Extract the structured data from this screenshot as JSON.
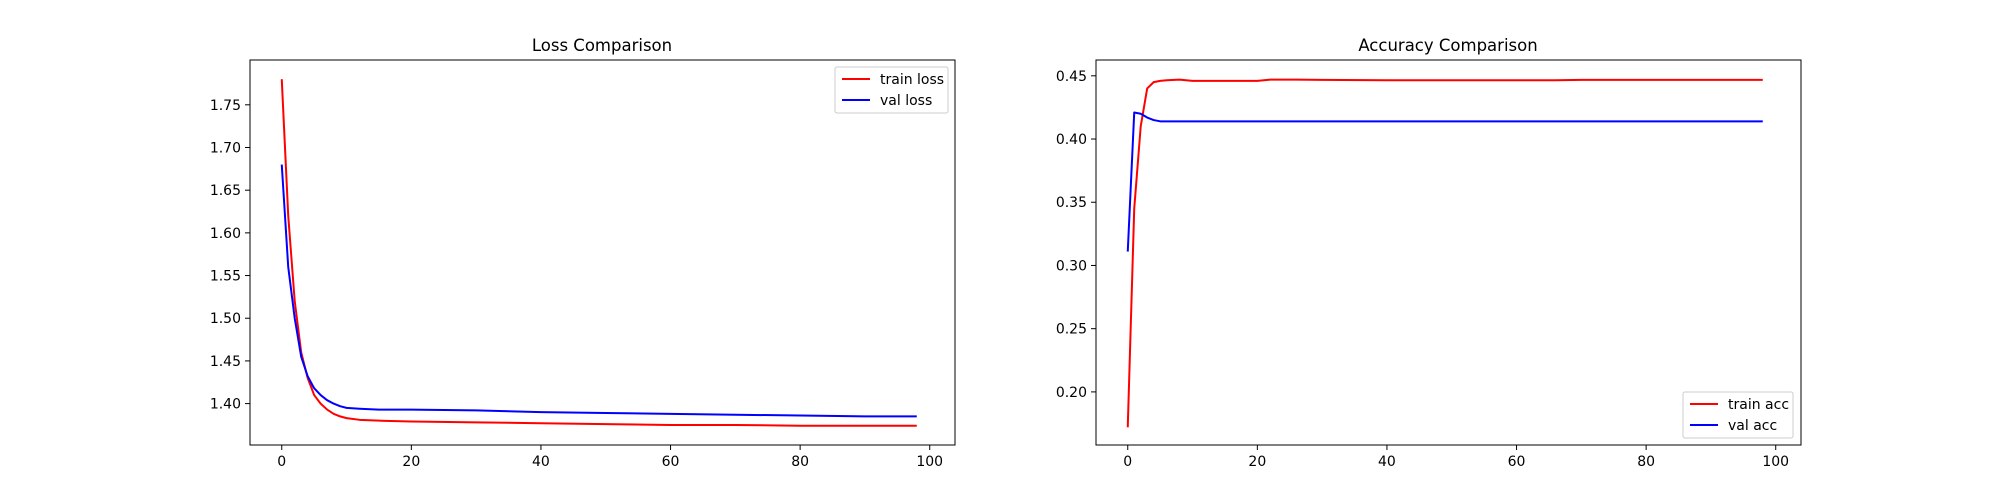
{
  "chart_data": [
    {
      "type": "line",
      "title": "Loss Comparison",
      "xlabel": "",
      "ylabel": "",
      "xlim": [
        -4.9,
        103.9
      ],
      "ylim": [
        1.3515,
        1.8025
      ],
      "xticks": [
        0,
        20,
        40,
        60,
        80,
        100
      ],
      "yticks": [
        1.4,
        1.45,
        1.5,
        1.55,
        1.6,
        1.65,
        1.7,
        1.75
      ],
      "ytick_format": 2,
      "legend_position": "upper right",
      "grid": false,
      "series": [
        {
          "name": "train loss",
          "color": "#ff0000",
          "points": [
            [
              0,
              1.78
            ],
            [
              1,
              1.62
            ],
            [
              2,
              1.52
            ],
            [
              3,
              1.46
            ],
            [
              4,
              1.43
            ],
            [
              5,
              1.41
            ],
            [
              6,
              1.4
            ],
            [
              7,
              1.393
            ],
            [
              8,
              1.388
            ],
            [
              9,
              1.385
            ],
            [
              10,
              1.383
            ],
            [
              12,
              1.381
            ],
            [
              15,
              1.38
            ],
            [
              20,
              1.379
            ],
            [
              30,
              1.378
            ],
            [
              40,
              1.377
            ],
            [
              50,
              1.376
            ],
            [
              60,
              1.375
            ],
            [
              70,
              1.375
            ],
            [
              80,
              1.374
            ],
            [
              90,
              1.374
            ],
            [
              98,
              1.374
            ]
          ]
        },
        {
          "name": "val loss",
          "color": "#0000ff",
          "points": [
            [
              0,
              1.68
            ],
            [
              1,
              1.56
            ],
            [
              2,
              1.5
            ],
            [
              3,
              1.455
            ],
            [
              4,
              1.432
            ],
            [
              5,
              1.418
            ],
            [
              6,
              1.41
            ],
            [
              7,
              1.404
            ],
            [
              8,
              1.4
            ],
            [
              9,
              1.397
            ],
            [
              10,
              1.395
            ],
            [
              12,
              1.394
            ],
            [
              15,
              1.393
            ],
            [
              20,
              1.393
            ],
            [
              30,
              1.392
            ],
            [
              40,
              1.39
            ],
            [
              50,
              1.389
            ],
            [
              60,
              1.388
            ],
            [
              70,
              1.387
            ],
            [
              80,
              1.386
            ],
            [
              90,
              1.385
            ],
            [
              98,
              1.385
            ]
          ]
        }
      ]
    },
    {
      "type": "line",
      "title": "Accuracy Comparison",
      "xlabel": "",
      "ylabel": "",
      "xlim": [
        -4.9,
        103.9
      ],
      "ylim": [
        0.158,
        0.4625
      ],
      "xticks": [
        0,
        20,
        40,
        60,
        80,
        100
      ],
      "yticks": [
        0.2,
        0.25,
        0.3,
        0.35,
        0.4,
        0.45
      ],
      "ytick_format": 2,
      "legend_position": "lower right",
      "grid": false,
      "series": [
        {
          "name": "train acc",
          "color": "#ff0000",
          "points": [
            [
              0,
              0.172
            ],
            [
              1,
              0.345
            ],
            [
              2,
              0.41
            ],
            [
              3,
              0.44
            ],
            [
              4,
              0.445
            ],
            [
              5,
              0.446
            ],
            [
              6,
              0.4465
            ],
            [
              8,
              0.447
            ],
            [
              10,
              0.446
            ],
            [
              12,
              0.446
            ],
            [
              16,
              0.446
            ],
            [
              20,
              0.446
            ],
            [
              22,
              0.447
            ],
            [
              26,
              0.447
            ],
            [
              30,
              0.4468
            ],
            [
              40,
              0.4465
            ],
            [
              50,
              0.4465
            ],
            [
              60,
              0.4465
            ],
            [
              66,
              0.4465
            ],
            [
              70,
              0.4468
            ],
            [
              80,
              0.4468
            ],
            [
              90,
              0.4468
            ],
            [
              98,
              0.4468
            ]
          ]
        },
        {
          "name": "val acc",
          "color": "#0000ff",
          "points": [
            [
              0,
              0.311
            ],
            [
              1,
              0.421
            ],
            [
              2,
              0.42
            ],
            [
              3,
              0.417
            ],
            [
              4,
              0.415
            ],
            [
              5,
              0.414
            ],
            [
              6,
              0.414
            ],
            [
              10,
              0.414
            ],
            [
              20,
              0.414
            ],
            [
              40,
              0.414
            ],
            [
              60,
              0.414
            ],
            [
              80,
              0.414
            ],
            [
              98,
              0.414
            ]
          ]
        }
      ]
    }
  ]
}
